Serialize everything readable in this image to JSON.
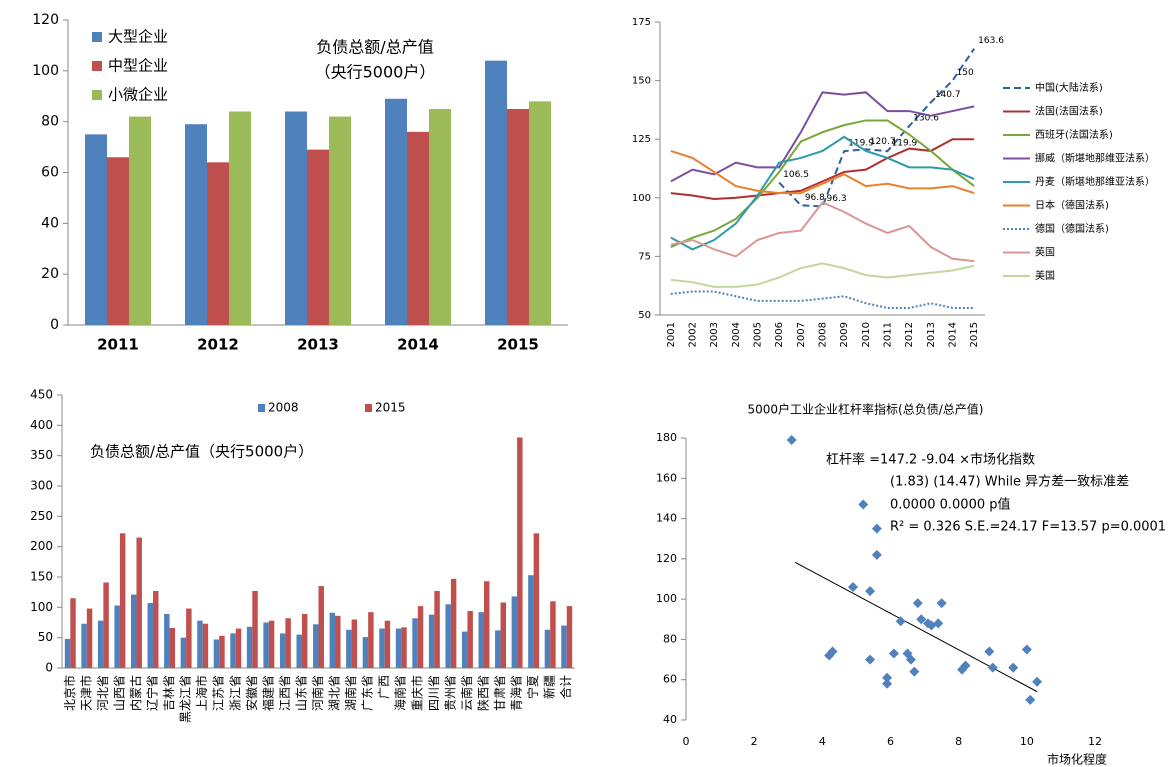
{
  "chart_data": [
    {
      "type": "bar",
      "annotations": [
        "负债总额/总产值",
        "（央行5000户）"
      ],
      "categories": [
        "2011",
        "2012",
        "2013",
        "2014",
        "2015"
      ],
      "series": [
        {
          "name": "大型企业",
          "color": "#4f81bd",
          "values": [
            75,
            79,
            84,
            89,
            104
          ]
        },
        {
          "name": "中型企业",
          "color": "#c0504d",
          "values": [
            66,
            64,
            69,
            76,
            85
          ]
        },
        {
          "name": "小微企业",
          "color": "#9bbb59",
          "values": [
            82,
            84,
            82,
            85,
            88
          ]
        }
      ],
      "ylim": [
        0,
        120
      ],
      "yticks": [
        0,
        20,
        40,
        60,
        80,
        100,
        120
      ],
      "legend": "top-left"
    },
    {
      "type": "line",
      "categories": [
        "2001",
        "2002",
        "2003",
        "2004",
        "2005",
        "2006",
        "2007",
        "2008",
        "2009",
        "2010",
        "2011",
        "2012",
        "2013",
        "2014",
        "2015"
      ],
      "series": [
        {
          "name": "中国(大陆法系)",
          "color": "#2e5f9e",
          "dash": "dash",
          "show_values": true,
          "values": [
            null,
            null,
            null,
            null,
            null,
            106.5,
            96.8,
            96.3,
            119.9,
            120.7,
            119.9,
            130.6,
            140.7,
            150,
            163.6
          ]
        },
        {
          "name": "法国(法国法系)",
          "color": "#b03030",
          "values": [
            102,
            101,
            99.5,
            100,
            101,
            102,
            103,
            107,
            111,
            112,
            117,
            121,
            120,
            125,
            125
          ]
        },
        {
          "name": "西班牙(法国法系)",
          "color": "#77a83a",
          "values": [
            79,
            83,
            86,
            91,
            100,
            111,
            124,
            128,
            131,
            133,
            133,
            127,
            120,
            112,
            105
          ]
        },
        {
          "name": "挪威（斯堪地那维亚法系）",
          "color": "#7b4fa0",
          "values": [
            107,
            112,
            110,
            115,
            113,
            113,
            128,
            145,
            144,
            145,
            137,
            137,
            135,
            137,
            139
          ]
        },
        {
          "name": "丹麦（斯堪地那维亚法系）",
          "color": "#2e9aa8",
          "values": [
            83,
            78,
            82,
            89,
            101,
            115,
            117,
            120,
            126,
            120,
            117,
            113,
            113,
            112,
            108
          ]
        },
        {
          "name": "日本（德国法系)",
          "color": "#e8822a",
          "values": [
            120,
            117,
            111,
            105,
            103,
            102,
            102,
            106,
            110,
            105,
            106,
            104,
            104,
            105,
            102
          ]
        },
        {
          "name": "德国（德国法系)",
          "color": "#4f81bd",
          "dash": "dot",
          "values": [
            59,
            60,
            60,
            58,
            56,
            56,
            56,
            57,
            58,
            55,
            53,
            53,
            55,
            53,
            53
          ]
        },
        {
          "name": "英国",
          "color": "#d99694",
          "values": [
            80,
            82,
            78,
            75,
            82,
            85,
            86,
            98,
            94,
            89,
            85,
            88,
            79,
            74,
            73
          ]
        },
        {
          "name": "美国",
          "color": "#c3d69b",
          "values": [
            65,
            64,
            62,
            62,
            63,
            66,
            70,
            72,
            70,
            67,
            66,
            67,
            68,
            69,
            71
          ]
        }
      ],
      "ylim": [
        50,
        175
      ],
      "yticks": [
        50,
        75,
        100,
        125,
        150,
        175
      ],
      "legend": "right"
    },
    {
      "type": "bar",
      "annotations": [
        "负债总额/总产值（央行5000户）"
      ],
      "categories": [
        "北京市",
        "天津市",
        "河北省",
        "山西省",
        "内蒙古",
        "辽宁省",
        "吉林省",
        "黑龙江省",
        "上海市",
        "江苏省",
        "浙江省",
        "安徽省",
        "福建省",
        "江西省",
        "山东省",
        "河南省",
        "湖北省",
        "湖南省",
        "广东省",
        "广西",
        "海南省",
        "重庆市",
        "四川省",
        "贵州省",
        "云南省",
        "陕西省",
        "甘肃省",
        "青海省",
        "宁夏",
        "新疆",
        "合计"
      ],
      "series": [
        {
          "name": "2008",
          "color": "#4f81bd",
          "values": [
            48,
            73,
            78,
            103,
            121,
            107,
            89,
            50,
            78,
            47,
            57,
            68,
            75,
            57,
            55,
            72,
            91,
            63,
            51,
            65,
            65,
            82,
            88,
            105,
            60,
            92,
            62,
            118,
            153,
            63,
            70
          ]
        },
        {
          "name": "2015",
          "color": "#c0504d",
          "values": [
            115,
            98,
            141,
            222,
            215,
            127,
            66,
            98,
            73,
            53,
            65,
            127,
            78,
            82,
            89,
            135,
            86,
            80,
            92,
            78,
            67,
            102,
            127,
            147,
            94,
            143,
            108,
            380,
            222,
            110,
            102
          ]
        }
      ],
      "ylim": [
        0,
        450
      ],
      "yticks": [
        0,
        50,
        100,
        150,
        200,
        250,
        300,
        350,
        400,
        450
      ],
      "legend": "top"
    },
    {
      "type": "scatter",
      "title": "5000户工业企业杠杆率指标(总负债/总产值)",
      "x_label": "市场化程度",
      "annotations": [
        "杠杆率 =147.2 -9.04 ×市场化指数",
        "(1.83)     (14.47) While 异方差一致标准差",
        "0.0000     0.0000   p值",
        "R² = 0.326    S.E.=24.17     F=13.57   p=0.0001"
      ],
      "color": "#4f81bd",
      "x": [
        3.1,
        4.2,
        4.3,
        4.9,
        5.2,
        5.4,
        5.4,
        5.6,
        5.6,
        5.9,
        5.9,
        6.1,
        6.3,
        6.5,
        6.6,
        6.7,
        6.8,
        6.9,
        7.1,
        7.2,
        7.4,
        7.5,
        8.1,
        8.2,
        8.9,
        9.0,
        9.6,
        10.0,
        10.1,
        10.3
      ],
      "values": [
        179,
        72,
        74,
        106,
        147,
        104,
        70,
        122,
        135,
        61,
        58,
        73,
        89,
        73,
        70,
        64,
        98,
        90,
        88,
        87,
        88,
        98,
        65,
        67,
        74,
        66,
        66,
        75,
        50,
        59
      ],
      "trendline": {
        "intercept": 147.2,
        "slope": -9.04,
        "x_range": [
          3.2,
          10.3
        ]
      },
      "xlim": [
        0,
        12
      ],
      "xticks": [
        0,
        2,
        4,
        6,
        8,
        10,
        12
      ],
      "ylim": [
        40,
        180
      ],
      "yticks": [
        40,
        60,
        80,
        100,
        120,
        140,
        160,
        180
      ]
    }
  ]
}
